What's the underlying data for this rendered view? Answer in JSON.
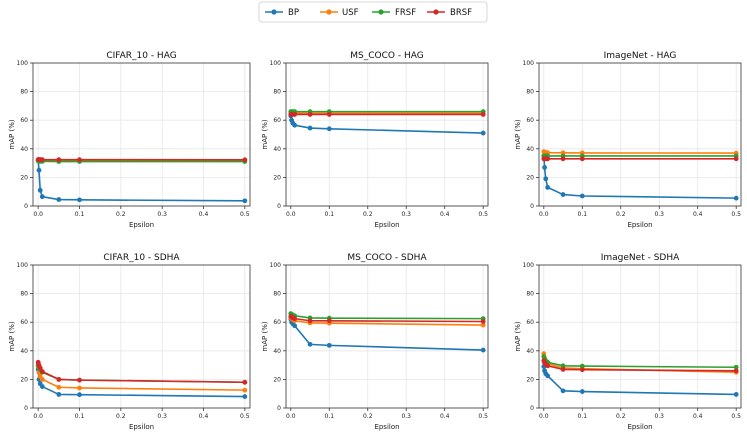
{
  "legend": {
    "entries": [
      {
        "name": "BP",
        "color": "#1f77b4"
      },
      {
        "name": "USF",
        "color": "#ff7f0e"
      },
      {
        "name": "FRSF",
        "color": "#2ca02c"
      },
      {
        "name": "BRSF",
        "color": "#d62728"
      }
    ]
  },
  "chart_data": [
    {
      "type": "line",
      "title": "CIFAR_10 - HAG",
      "xlabel": "Epsilon",
      "ylabel": "mAP (%)",
      "xlim": [
        -0.0125,
        0.5125
      ],
      "ylim": [
        0,
        100
      ],
      "xticks": [
        0.0,
        0.1,
        0.2,
        0.3,
        0.4,
        0.5
      ],
      "xtick_labels": [
        "0.0",
        "0.1",
        "0.2",
        "0.3",
        "0.4",
        "0.5"
      ],
      "yticks": [
        0,
        20,
        40,
        60,
        80,
        100
      ],
      "ytick_labels": [
        "0",
        "20",
        "40",
        "60",
        "80",
        "100"
      ],
      "x": [
        0.0,
        0.002,
        0.005,
        0.01,
        0.05,
        0.1,
        0.5
      ],
      "series": [
        {
          "name": "BP",
          "color": "#1f77b4",
          "values": [
            32,
            25,
            11,
            6.5,
            4.5,
            4.3,
            3.6
          ]
        },
        {
          "name": "USF",
          "color": "#ff7f0e",
          "values": [
            32,
            32,
            32,
            32,
            32,
            32,
            32
          ]
        },
        {
          "name": "FRSF",
          "color": "#2ca02c",
          "values": [
            31.5,
            31.3,
            31.2,
            31.2,
            31.1,
            31.1,
            31.1
          ]
        },
        {
          "name": "BRSF",
          "color": "#d62728",
          "values": [
            32.5,
            32.5,
            32.5,
            32.4,
            32.4,
            32.4,
            32.3
          ]
        }
      ]
    },
    {
      "type": "line",
      "title": "MS_COCO - HAG",
      "xlabel": "Epsilon",
      "ylabel": "mAP (%)",
      "xlim": [
        -0.0125,
        0.5125
      ],
      "ylim": [
        0,
        100
      ],
      "xticks": [
        0.0,
        0.1,
        0.2,
        0.3,
        0.4,
        0.5
      ],
      "xtick_labels": [
        "0.0",
        "0.1",
        "0.2",
        "0.3",
        "0.4",
        "0.5"
      ],
      "yticks": [
        0,
        20,
        40,
        60,
        80,
        100
      ],
      "ytick_labels": [
        "0",
        "20",
        "40",
        "60",
        "80",
        "100"
      ],
      "x": [
        0.0,
        0.002,
        0.005,
        0.01,
        0.05,
        0.1,
        0.5
      ],
      "series": [
        {
          "name": "BP",
          "color": "#1f77b4",
          "values": [
            63,
            60,
            58,
            56.5,
            54.5,
            54,
            51
          ]
        },
        {
          "name": "USF",
          "color": "#ff7f0e",
          "values": [
            65,
            65,
            65,
            65,
            64.8,
            64.8,
            64.8
          ]
        },
        {
          "name": "FRSF",
          "color": "#2ca02c",
          "values": [
            66,
            66,
            66,
            66,
            66,
            66,
            66
          ]
        },
        {
          "name": "BRSF",
          "color": "#d62728",
          "values": [
            64,
            64,
            64,
            64,
            64,
            64,
            64
          ]
        }
      ]
    },
    {
      "type": "line",
      "title": "ImageNet - HAG",
      "xlabel": "Epsilon",
      "ylabel": "mAP (%)",
      "xlim": [
        -0.0125,
        0.5125
      ],
      "ylim": [
        0,
        100
      ],
      "xticks": [
        0.0,
        0.1,
        0.2,
        0.3,
        0.4,
        0.5
      ],
      "xtick_labels": [
        "0.0",
        "0.1",
        "0.2",
        "0.3",
        "0.4",
        "0.5"
      ],
      "yticks": [
        0,
        20,
        40,
        60,
        80,
        100
      ],
      "ytick_labels": [
        "0",
        "20",
        "40",
        "60",
        "80",
        "100"
      ],
      "x": [
        0.0,
        0.002,
        0.005,
        0.01,
        0.05,
        0.1,
        0.5
      ],
      "series": [
        {
          "name": "BP",
          "color": "#1f77b4",
          "values": [
            35,
            27,
            19,
            13,
            8,
            7,
            5.5
          ]
        },
        {
          "name": "USF",
          "color": "#ff7f0e",
          "values": [
            38,
            37.5,
            37.5,
            37.3,
            37.2,
            37.1,
            37
          ]
        },
        {
          "name": "FRSF",
          "color": "#2ca02c",
          "values": [
            35,
            35,
            35,
            35,
            35,
            35,
            35
          ]
        },
        {
          "name": "BRSF",
          "color": "#d62728",
          "values": [
            33,
            33,
            33,
            33,
            33,
            33,
            33
          ]
        }
      ]
    },
    {
      "type": "line",
      "title": "CIFAR_10 - SDHA",
      "xlabel": "Epsilon",
      "ylabel": "mAP (%)",
      "xlim": [
        -0.0125,
        0.5125
      ],
      "ylim": [
        0,
        100
      ],
      "xticks": [
        0.0,
        0.1,
        0.2,
        0.3,
        0.4,
        0.5
      ],
      "xtick_labels": [
        "0.0",
        "0.1",
        "0.2",
        "0.3",
        "0.4",
        "0.5"
      ],
      "yticks": [
        0,
        20,
        40,
        60,
        80,
        100
      ],
      "ytick_labels": [
        "0",
        "20",
        "40",
        "60",
        "80",
        "100"
      ],
      "x": [
        0.0,
        0.002,
        0.005,
        0.01,
        0.05,
        0.1,
        0.5
      ],
      "series": [
        {
          "name": "BP",
          "color": "#1f77b4",
          "values": [
            27,
            20,
            17,
            15,
            9.5,
            9.3,
            8
          ]
        },
        {
          "name": "USF",
          "color": "#ff7f0e",
          "values": [
            29,
            25,
            22,
            20,
            14.5,
            14,
            12.5
          ]
        },
        {
          "name": "FRSF",
          "color": "#2ca02c",
          "values": [
            30,
            28,
            27,
            25,
            20,
            19.5,
            18
          ]
        },
        {
          "name": "BRSF",
          "color": "#d62728",
          "values": [
            32,
            30,
            28,
            25.5,
            20,
            19.5,
            18
          ]
        }
      ]
    },
    {
      "type": "line",
      "title": "MS_COCO - SDHA",
      "xlabel": "Epsilon",
      "ylabel": "mAP (%)",
      "xlim": [
        -0.0125,
        0.5125
      ],
      "ylim": [
        0,
        100
      ],
      "xticks": [
        0.0,
        0.1,
        0.2,
        0.3,
        0.4,
        0.5
      ],
      "xtick_labels": [
        "0.0",
        "0.1",
        "0.2",
        "0.3",
        "0.4",
        "0.5"
      ],
      "yticks": [
        0,
        20,
        40,
        60,
        80,
        100
      ],
      "ytick_labels": [
        "0",
        "20",
        "40",
        "60",
        "80",
        "100"
      ],
      "x": [
        0.0,
        0.002,
        0.005,
        0.01,
        0.05,
        0.1,
        0.5
      ],
      "series": [
        {
          "name": "BP",
          "color": "#1f77b4",
          "values": [
            62,
            60,
            59,
            57.5,
            44.5,
            43.8,
            40.5
          ]
        },
        {
          "name": "USF",
          "color": "#ff7f0e",
          "values": [
            63,
            62.5,
            62,
            61,
            59.5,
            59.3,
            58
          ]
        },
        {
          "name": "FRSF",
          "color": "#2ca02c",
          "values": [
            66,
            65.5,
            65,
            64.5,
            63,
            62.8,
            62.5
          ]
        },
        {
          "name": "BRSF",
          "color": "#d62728",
          "values": [
            64,
            63.5,
            63,
            62.5,
            61,
            61,
            60.5
          ]
        }
      ]
    },
    {
      "type": "line",
      "title": "ImageNet - SDHA",
      "xlabel": "Epsilon",
      "ylabel": "mAP (%)",
      "xlim": [
        -0.0125,
        0.5125
      ],
      "ylim": [
        0,
        100
      ],
      "xticks": [
        0.0,
        0.1,
        0.2,
        0.3,
        0.4,
        0.5
      ],
      "xtick_labels": [
        "0.0",
        "0.1",
        "0.2",
        "0.3",
        "0.4",
        "0.5"
      ],
      "yticks": [
        0,
        20,
        40,
        60,
        80,
        100
      ],
      "ytick_labels": [
        "0",
        "20",
        "40",
        "60",
        "80",
        "100"
      ],
      "x": [
        0.0,
        0.002,
        0.005,
        0.01,
        0.05,
        0.1,
        0.5
      ],
      "series": [
        {
          "name": "BP",
          "color": "#1f77b4",
          "values": [
            29,
            26,
            24,
            22.5,
            12,
            11.5,
            9.5
          ]
        },
        {
          "name": "USF",
          "color": "#ff7f0e",
          "values": [
            38,
            35,
            33,
            31,
            28,
            27.5,
            25
          ]
        },
        {
          "name": "FRSF",
          "color": "#2ca02c",
          "values": [
            36,
            34,
            33,
            32,
            29.5,
            29.3,
            28.5
          ]
        },
        {
          "name": "BRSF",
          "color": "#d62728",
          "values": [
            33,
            31.5,
            30.5,
            29.5,
            27,
            26.8,
            26
          ]
        }
      ]
    }
  ]
}
